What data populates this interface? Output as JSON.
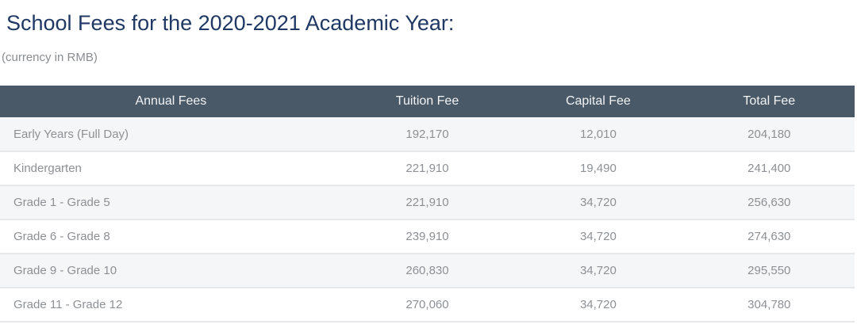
{
  "page": {
    "title": "School Fees for the 2020-2021 Academic Year:",
    "subtitle": "(currency in RMB)"
  },
  "table": {
    "columns": [
      "Annual Fees",
      "Tuition Fee",
      "Capital Fee",
      "Total Fee"
    ],
    "rows": [
      {
        "annual": "Early Years (Full Day)",
        "tuition": "192,170",
        "capital": "12,010",
        "total": "204,180"
      },
      {
        "annual": "Kindergarten",
        "tuition": "221,910",
        "capital": "19,490",
        "total": "241,400"
      },
      {
        "annual": "Grade 1 - Grade 5",
        "tuition": "221,910",
        "capital": "34,720",
        "total": "256,630"
      },
      {
        "annual": "Grade 6 - Grade 8",
        "tuition": "239,910",
        "capital": "34,720",
        "total": "274,630"
      },
      {
        "annual": "Grade 9 - Grade 10",
        "tuition": "260,830",
        "capital": "34,720",
        "total": "295,550"
      },
      {
        "annual": "Grade 11 - Grade 12",
        "tuition": "270,060",
        "capital": "34,720",
        "total": "304,780"
      }
    ]
  },
  "colors": {
    "title": "#1f3864",
    "subtitle": "#8a8d90",
    "header_bg": "#4a5968",
    "header_text": "#f2f3f5",
    "row_alt_bg": "#f5f6f8",
    "row_text": "#8d9094",
    "border": "#e6e8eb"
  }
}
